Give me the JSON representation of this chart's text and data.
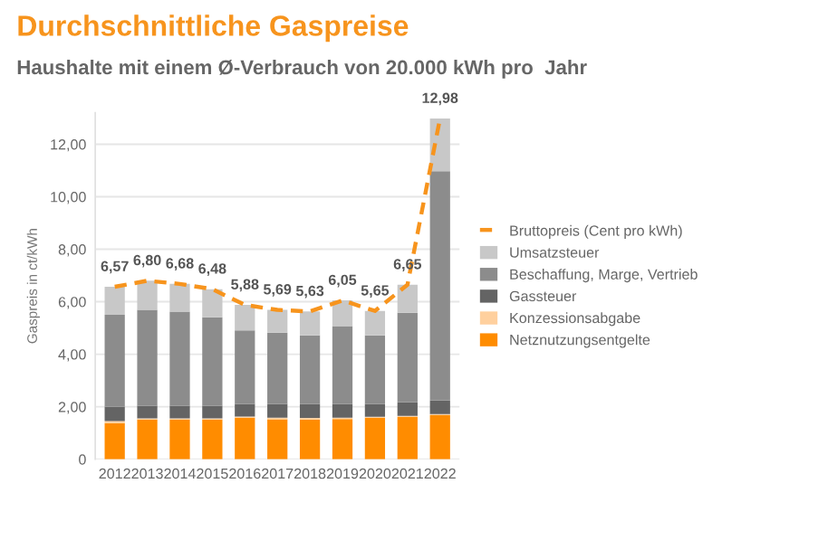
{
  "chart_data": {
    "type": "bar",
    "title": "Durchschnittliche Gaspreise",
    "subtitle": "Haushalte mit einem Ø-Verbrauch von 20.000 kWh pro  Jahr",
    "ylabel": "Gaspreis in ct/kWh",
    "categories": [
      "2012",
      "2013",
      "2014",
      "2015",
      "2016",
      "2017",
      "2018",
      "2019",
      "2020",
      "2021",
      "2022"
    ],
    "stacked": true,
    "ylim": [
      0,
      13.2
    ],
    "yticks": [
      {
        "value": 0,
        "label": "0"
      },
      {
        "value": 2,
        "label": "2,00"
      },
      {
        "value": 4,
        "label": "4,00"
      },
      {
        "value": 6,
        "label": "6,00"
      },
      {
        "value": 8,
        "label": "8,00"
      },
      {
        "value": 10,
        "label": "10,00"
      },
      {
        "value": 12,
        "label": "12,00"
      }
    ],
    "grid": "y",
    "legend": "right",
    "series": [
      {
        "name": "Netznutzungsentgelte",
        "color": "#ff8c00",
        "values": [
          1.38,
          1.51,
          1.51,
          1.51,
          1.58,
          1.52,
          1.51,
          1.53,
          1.58,
          1.61,
          1.68
        ]
      },
      {
        "name": "Konzessionsabgabe",
        "color": "#ffd09e",
        "values": [
          0.07,
          0.05,
          0.05,
          0.05,
          0.05,
          0.06,
          0.06,
          0.05,
          0.04,
          0.04,
          0.04
        ]
      },
      {
        "name": "Gassteuer",
        "color": "#646464",
        "values": [
          0.55,
          0.48,
          0.48,
          0.48,
          0.48,
          0.53,
          0.54,
          0.53,
          0.49,
          0.52,
          0.52
        ]
      },
      {
        "name": "Beschaffung, Marge, Vertrieb",
        "color": "#8c8c8c",
        "values": [
          3.5,
          3.65,
          3.58,
          3.37,
          2.8,
          2.71,
          2.61,
          2.96,
          2.61,
          3.41,
          8.73
        ]
      },
      {
        "name": "Umsatzsteuer",
        "color": "#c8c8c8",
        "values": [
          1.07,
          1.11,
          1.06,
          1.07,
          0.97,
          0.87,
          0.91,
          0.98,
          0.93,
          1.07,
          2.01
        ]
      },
      {
        "name": "Bruttopreis (Cent pro kWh)",
        "type": "line",
        "color": "#f7941d",
        "line_style": "dashed",
        "marker": "none",
        "values": [
          6.57,
          6.8,
          6.68,
          6.48,
          5.88,
          5.69,
          5.63,
          6.05,
          5.65,
          6.65,
          12.98
        ],
        "value_labels": [
          "6,57",
          "6,80",
          "6,68",
          "6,48",
          "5,88",
          "5,69",
          "5,63",
          "6,05",
          "5,65",
          "6,65",
          "12,98"
        ]
      }
    ]
  }
}
